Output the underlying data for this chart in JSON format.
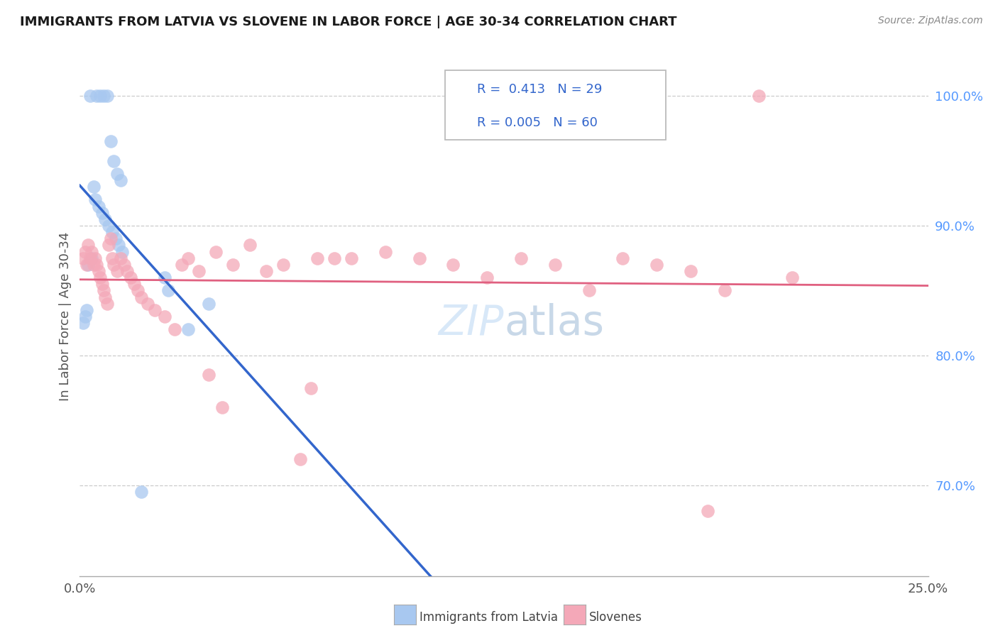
{
  "title": "IMMIGRANTS FROM LATVIA VS SLOVENE IN LABOR FORCE | AGE 30-34 CORRELATION CHART",
  "source": "Source: ZipAtlas.com",
  "ylabel": "In Labor Force | Age 30-34",
  "xlim": [
    0.0,
    25.0
  ],
  "ylim": [
    63.0,
    103.0
  ],
  "yticks": [
    70.0,
    80.0,
    90.0,
    100.0
  ],
  "xticks": [
    0.0,
    25.0
  ],
  "xticklabels": [
    "0.0%",
    "25.0%"
  ],
  "yticklabels": [
    "70.0%",
    "80.0%",
    "90.0%",
    "100.0%"
  ],
  "latvia_R": "0.413",
  "latvia_N": "29",
  "slovene_R": "0.005",
  "slovene_N": "60",
  "latvia_color": "#a8c8f0",
  "slovene_color": "#f4a8b8",
  "trendline_latvia_color": "#3366cc",
  "trendline_slovene_color": "#e06080",
  "background_color": "#ffffff",
  "grid_color": "#cccccc",
  "watermark_color": "#d8e8f8",
  "latvia_x": [
    0.3,
    0.5,
    0.6,
    0.7,
    0.8,
    0.9,
    1.0,
    1.1,
    1.2,
    0.4,
    0.45,
    0.55,
    0.65,
    0.75,
    0.85,
    0.95,
    1.05,
    1.15,
    1.25,
    0.35,
    0.25,
    2.5,
    2.6,
    3.8,
    0.2,
    0.15,
    0.1,
    3.2,
    1.8
  ],
  "latvia_y": [
    100.0,
    100.0,
    100.0,
    100.0,
    100.0,
    96.5,
    95.0,
    94.0,
    93.5,
    93.0,
    92.0,
    91.5,
    91.0,
    90.5,
    90.0,
    89.5,
    89.0,
    88.5,
    88.0,
    87.5,
    87.0,
    86.0,
    85.0,
    84.0,
    83.5,
    83.0,
    82.5,
    82.0,
    69.5
  ],
  "slovene_x": [
    0.1,
    0.15,
    0.2,
    0.25,
    0.3,
    0.35,
    0.4,
    0.45,
    0.5,
    0.55,
    0.6,
    0.65,
    0.7,
    0.75,
    0.8,
    0.85,
    0.9,
    0.95,
    1.0,
    1.1,
    1.2,
    1.3,
    1.4,
    1.5,
    1.6,
    1.7,
    1.8,
    2.0,
    2.2,
    2.5,
    3.0,
    3.5,
    4.0,
    5.0,
    6.0,
    7.0,
    2.8,
    3.2,
    4.5,
    5.5,
    6.5,
    8.0,
    9.0,
    10.0,
    11.0,
    12.0,
    13.0,
    14.0,
    15.0,
    16.0,
    17.0,
    18.0,
    19.0,
    20.0,
    21.0,
    3.8,
    4.2,
    6.8,
    18.5,
    7.5
  ],
  "slovene_y": [
    87.5,
    88.0,
    87.0,
    88.5,
    87.5,
    88.0,
    87.0,
    87.5,
    87.0,
    86.5,
    86.0,
    85.5,
    85.0,
    84.5,
    84.0,
    88.5,
    89.0,
    87.5,
    87.0,
    86.5,
    87.5,
    87.0,
    86.5,
    86.0,
    85.5,
    85.0,
    84.5,
    84.0,
    83.5,
    83.0,
    87.0,
    86.5,
    88.0,
    88.5,
    87.0,
    87.5,
    82.0,
    87.5,
    87.0,
    86.5,
    72.0,
    87.5,
    88.0,
    87.5,
    87.0,
    86.0,
    87.5,
    87.0,
    85.0,
    87.5,
    87.0,
    86.5,
    85.0,
    100.0,
    86.0,
    78.5,
    76.0,
    77.5,
    68.0,
    87.5
  ]
}
